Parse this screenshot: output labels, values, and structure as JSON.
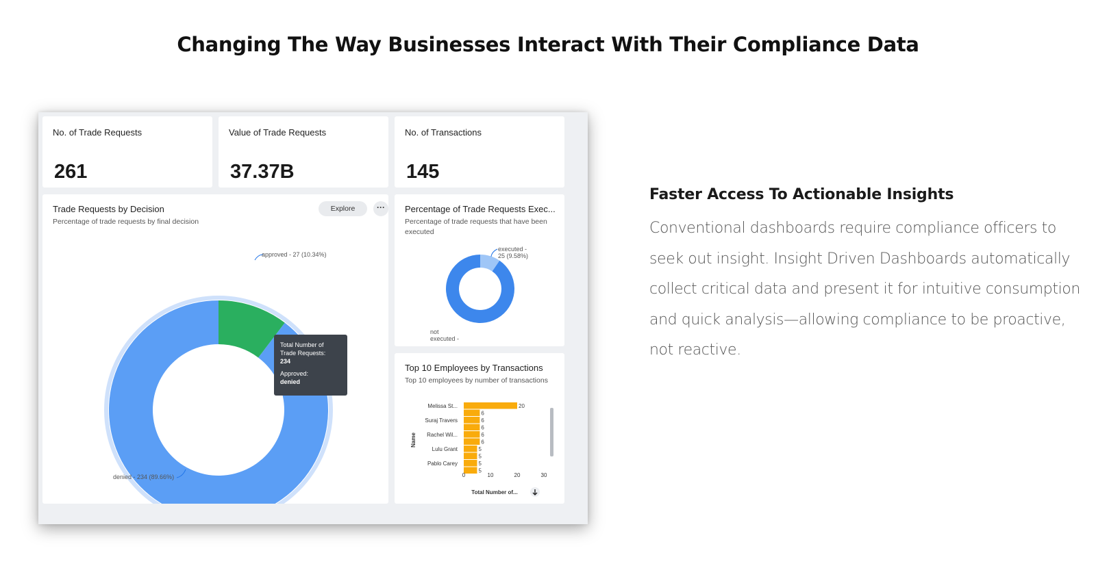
{
  "page": {
    "headline": "Changing The Way Businesses Interact With Their Compliance Data",
    "side_title": "Faster Access To Actionable Insights",
    "side_body": "Conventional dashboards require compliance officers to seek out insight. Insight Driven Dashboards automatically collect critical data and present it for intuitive consumption and quick analysis—allowing compliance to be proactive, not reactive."
  },
  "kpis": [
    {
      "label": "No. of Trade Requests",
      "value": "261"
    },
    {
      "label": "Value of Trade Requests",
      "value": "37.37B"
    },
    {
      "label": "No. of Transactions",
      "value": "145"
    }
  ],
  "decision_card": {
    "title": "Trade Requests by Decision",
    "subtitle": "Percentage of trade requests by final decision",
    "explore_label": "Explore",
    "more_label": "···",
    "tooltip": {
      "line1": "Total Number of",
      "line2": "Trade Requests:",
      "line3": "234",
      "line4": "Approved:",
      "line5": "denied"
    }
  },
  "executed_card": {
    "title": "Percentage of Trade Requests Exec...",
    "subtitle": "Percentage of trade requests that have been executed"
  },
  "employees_card": {
    "title": "Top 10 Employees by Transactions",
    "subtitle": "Top 10 employees by number of transactions",
    "sort_icon": "arrow-down-icon"
  },
  "colors": {
    "denied_blue": "#5b9ef5",
    "approved_green": "#2aaf5f",
    "executed_blue": "#3d87ec",
    "executed_light": "#9fc6f7",
    "bar_orange": "#f9ab0c",
    "ring_halo": "#cfe1fb"
  },
  "chart_data": [
    {
      "type": "pie",
      "categories": [
        "approved",
        "denied"
      ],
      "values": [
        27,
        234
      ],
      "labels": [
        "approved - 27 (10.34%)",
        "denied - 234 (89.66%)"
      ],
      "colors": [
        "#2aaf5f",
        "#5b9ef5"
      ]
    },
    {
      "type": "pie",
      "categories": [
        "executed",
        "not executed"
      ],
      "values": [
        25,
        236
      ],
      "labels": [
        "executed -",
        "25 (9.58%)",
        "not",
        "executed -"
      ],
      "colors": [
        "#9fc6f7",
        "#3d87ec"
      ]
    },
    {
      "type": "bar",
      "orientation": "horizontal",
      "categories": [
        "Melissa St...",
        "",
        "Suraj Travers",
        "",
        "Rachel Wil...",
        "",
        "Lulu Grant",
        "",
        "Pablo Carey",
        ""
      ],
      "values": [
        20,
        6,
        6,
        6,
        6,
        6,
        5,
        5,
        5,
        5
      ],
      "value_labels": [
        "20",
        "6",
        "6",
        "6",
        "6",
        "6",
        "5",
        "5",
        "5",
        "5"
      ],
      "xlabel": "Total Number of...",
      "ylabel": "Name",
      "xlim": [
        0,
        30
      ],
      "xticks": [
        "0",
        "10",
        "20",
        "30"
      ]
    }
  ]
}
